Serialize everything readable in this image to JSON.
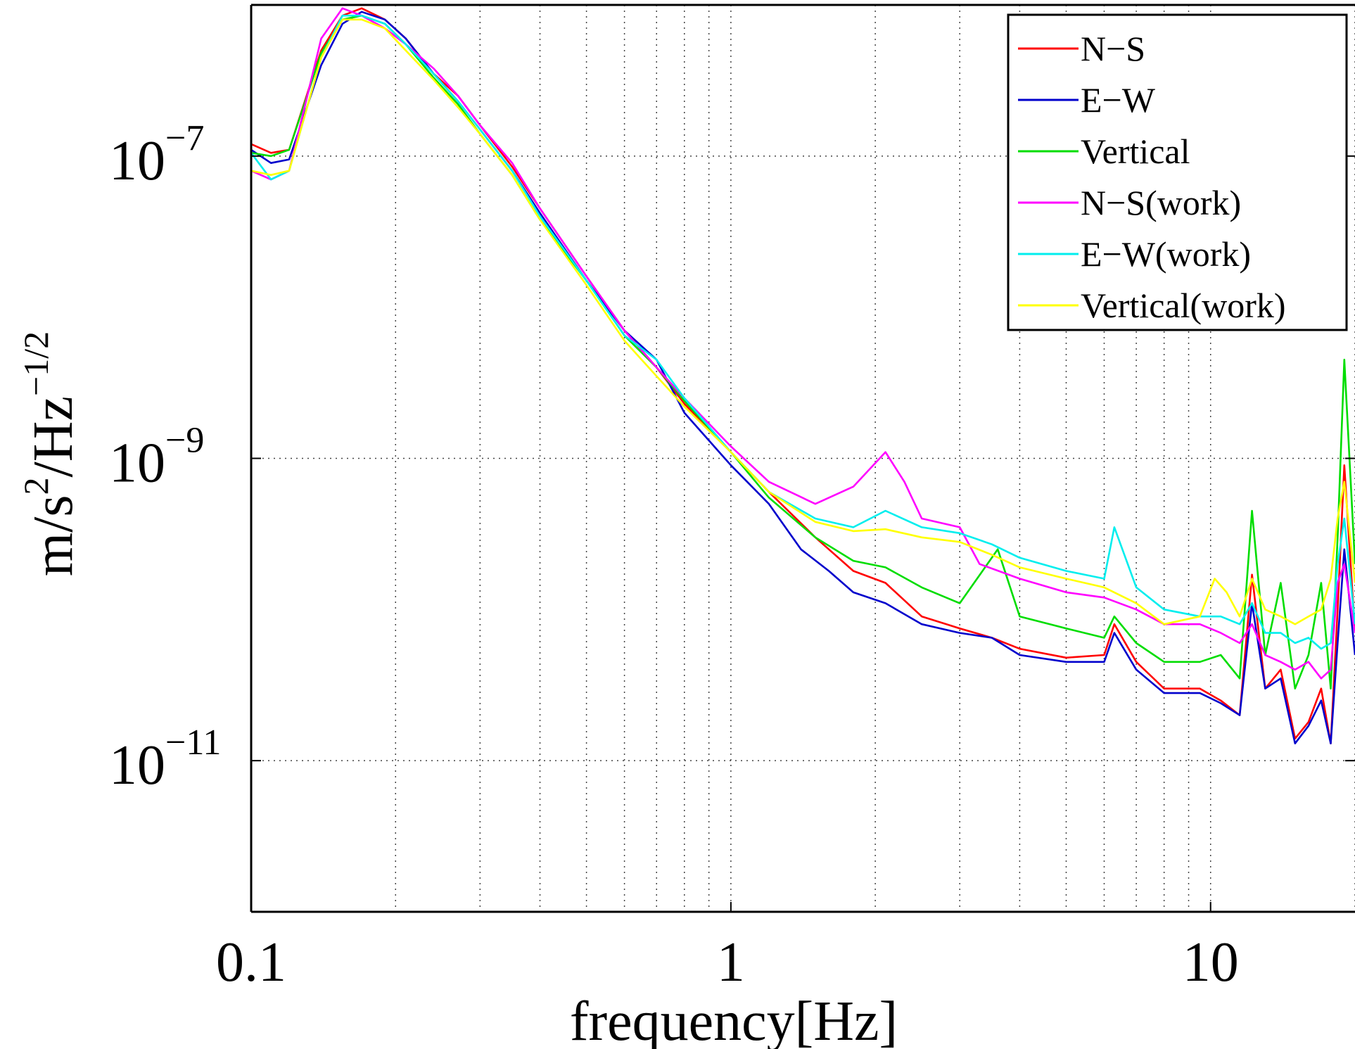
{
  "chart_data": {
    "type": "line",
    "title": "",
    "xlabel": "frequency[Hz]",
    "ylabel": "m/s²/Hz^−1/2",
    "ylabel_parts": {
      "base": "m/s",
      "exp1": "2",
      "mid": "/Hz",
      "exp2": "−1/2"
    },
    "x_scale": "log",
    "y_scale": "log",
    "xlim": [
      0.1,
      20
    ],
    "ylim": [
      1e-12,
      1e-06
    ],
    "x_ticks": [
      {
        "value": 0.1,
        "label": "0.1"
      },
      {
        "value": 1,
        "label": "1"
      },
      {
        "value": 10,
        "label": "10"
      }
    ],
    "y_ticks": [
      {
        "value": 1e-07,
        "base": "10",
        "exp": "−7"
      },
      {
        "value": 1e-09,
        "base": "10",
        "exp": "−9"
      },
      {
        "value": 1e-11,
        "base": "10",
        "exp": "−11"
      }
    ],
    "grid": true,
    "legend_position": "top-right",
    "series": [
      {
        "name": "N−S",
        "color": "#ff0000",
        "x": [
          0.1,
          0.11,
          0.12,
          0.14,
          0.155,
          0.17,
          0.19,
          0.21,
          0.24,
          0.27,
          0.3,
          0.35,
          0.4,
          0.5,
          0.6,
          0.7,
          0.8,
          1.0,
          1.2,
          1.5,
          1.8,
          2.1,
          2.5,
          3.0,
          3.5,
          4.0,
          5.0,
          6.0,
          6.3,
          7.0,
          8.0,
          9.5,
          10.5,
          11.5,
          12.2,
          13.0,
          14.0,
          15.0,
          16.0,
          17.0,
          17.8,
          18.4,
          19.0,
          20.0
        ],
        "y": [
          1.2e-07,
          1.05e-07,
          1.1e-07,
          5e-07,
          8.5e-07,
          9.5e-07,
          8e-07,
          6e-07,
          3.5e-07,
          2.5e-07,
          1.6e-07,
          8.5e-08,
          4.5e-08,
          1.6e-08,
          7e-09,
          4e-09,
          2.3e-09,
          1.1e-09,
          6e-10,
          3e-10,
          1.8e-10,
          1.5e-10,
          9e-11,
          7.5e-11,
          6.5e-11,
          5.5e-11,
          4.8e-11,
          5e-11,
          8e-11,
          4.5e-11,
          3e-11,
          3e-11,
          2.5e-11,
          2e-11,
          1.7e-10,
          3e-11,
          4e-11,
          1.4e-11,
          1.8e-11,
          3e-11,
          1.3e-11,
          1e-10,
          9e-10,
          7e-11
        ]
      },
      {
        "name": "E−W",
        "color": "#0000cc",
        "x": [
          0.1,
          0.11,
          0.12,
          0.14,
          0.155,
          0.17,
          0.19,
          0.21,
          0.24,
          0.27,
          0.3,
          0.35,
          0.4,
          0.5,
          0.6,
          0.7,
          0.8,
          1.0,
          1.2,
          1.4,
          1.6,
          1.8,
          2.1,
          2.5,
          3.0,
          3.5,
          4.0,
          5.0,
          6.0,
          6.3,
          7.0,
          8.0,
          9.5,
          10.5,
          11.5,
          12.2,
          13.0,
          14.0,
          15.0,
          16.0,
          17.0,
          17.8,
          18.4,
          19.0,
          20.0
        ],
        "y": [
          1.1e-07,
          9e-08,
          9.5e-08,
          4e-07,
          7.5e-07,
          9e-07,
          8e-07,
          6e-07,
          3.5e-07,
          2.3e-07,
          1.5e-07,
          8e-08,
          4.2e-08,
          1.5e-08,
          7e-09,
          4.5e-09,
          2e-09,
          9e-10,
          5e-10,
          2.5e-10,
          1.8e-10,
          1.3e-10,
          1.1e-10,
          8e-11,
          7e-11,
          6.5e-11,
          5e-11,
          4.5e-11,
          4.5e-11,
          7e-11,
          4e-11,
          2.8e-11,
          2.8e-11,
          2.4e-11,
          2e-11,
          1.1e-10,
          3e-11,
          3.5e-11,
          1.3e-11,
          1.7e-11,
          2.5e-11,
          1.3e-11,
          6e-11,
          2.5e-10,
          5e-11
        ]
      },
      {
        "name": "Vertical",
        "color": "#00dd00",
        "x": [
          0.1,
          0.11,
          0.12,
          0.14,
          0.155,
          0.17,
          0.19,
          0.21,
          0.24,
          0.27,
          0.3,
          0.35,
          0.4,
          0.5,
          0.6,
          0.7,
          0.8,
          1.0,
          1.2,
          1.5,
          1.8,
          2.1,
          2.5,
          3.0,
          3.6,
          4.0,
          5.0,
          6.0,
          6.3,
          7.0,
          8.0,
          9.5,
          10.5,
          11.5,
          12.2,
          13.0,
          14.0,
          15.0,
          16.0,
          17.0,
          17.8,
          18.4,
          19.0,
          20.0
        ],
        "y": [
          1.05e-07,
          1e-07,
          1.1e-07,
          4.8e-07,
          8e-07,
          8.5e-07,
          7.5e-07,
          5.5e-07,
          3.3e-07,
          2.2e-07,
          1.4e-07,
          7.5e-08,
          3.8e-08,
          1.5e-08,
          6.5e-09,
          4e-09,
          2.4e-09,
          1.1e-09,
          5.5e-10,
          3e-10,
          2.1e-10,
          1.9e-10,
          1.4e-10,
          1.1e-10,
          2.5e-10,
          9e-11,
          7.5e-11,
          6.5e-11,
          9e-11,
          6e-11,
          4.5e-11,
          4.5e-11,
          5e-11,
          3.5e-11,
          4.5e-10,
          5e-11,
          1.5e-10,
          3e-11,
          5e-11,
          1.5e-10,
          3e-11,
          3e-10,
          4.5e-09,
          2e-10
        ]
      },
      {
        "name": "N−S(work)",
        "color": "#ff00ff",
        "x": [
          0.1,
          0.11,
          0.12,
          0.14,
          0.155,
          0.17,
          0.19,
          0.21,
          0.24,
          0.27,
          0.3,
          0.35,
          0.4,
          0.5,
          0.6,
          0.7,
          0.8,
          1.0,
          1.2,
          1.5,
          1.8,
          2.1,
          2.3,
          2.5,
          3.0,
          3.3,
          4.0,
          5.0,
          6.0,
          7.0,
          8.0,
          9.5,
          10.5,
          11.5,
          12.2,
          13.0,
          14.0,
          15.0,
          16.0,
          17.0,
          17.8,
          18.4,
          19.0,
          20.0
        ],
        "y": [
          8e-08,
          7e-08,
          8e-08,
          6e-07,
          9.5e-07,
          8.5e-07,
          7e-07,
          5.5e-07,
          3.8e-07,
          2.5e-07,
          1.6e-07,
          9e-08,
          4.5e-08,
          1.6e-08,
          7e-09,
          4e-09,
          2.5e-09,
          1.2e-09,
          7e-10,
          5e-10,
          6.5e-10,
          1.1e-09,
          7e-10,
          4e-10,
          3.5e-10,
          2e-10,
          1.6e-10,
          1.3e-10,
          1.2e-10,
          1e-10,
          8e-11,
          8e-11,
          7e-11,
          6e-11,
          8e-11,
          5e-11,
          4.5e-11,
          4e-11,
          4.5e-11,
          3.5e-11,
          4e-11,
          1.5e-10,
          2e-10,
          7e-11
        ]
      },
      {
        "name": "E−W(work)",
        "color": "#00eeee",
        "x": [
          0.1,
          0.11,
          0.12,
          0.14,
          0.155,
          0.17,
          0.19,
          0.21,
          0.24,
          0.27,
          0.3,
          0.35,
          0.4,
          0.5,
          0.6,
          0.7,
          0.8,
          1.0,
          1.2,
          1.5,
          1.8,
          2.1,
          2.5,
          3.0,
          3.5,
          4.0,
          5.0,
          6.0,
          6.3,
          7.0,
          8.0,
          9.5,
          10.5,
          11.5,
          12.2,
          13.0,
          14.0,
          15.0,
          16.0,
          17.0,
          17.8,
          18.4,
          19.0,
          20.0
        ],
        "y": [
          1.05e-07,
          7e-08,
          8e-08,
          4.5e-07,
          8.5e-07,
          8.5e-07,
          7.5e-07,
          5.5e-07,
          3.5e-07,
          2.3e-07,
          1.5e-07,
          8e-08,
          4e-08,
          1.5e-08,
          6.5e-09,
          4.5e-09,
          2.5e-09,
          1.1e-09,
          6e-10,
          4e-10,
          3.5e-10,
          4.5e-10,
          3.5e-10,
          3.2e-10,
          2.7e-10,
          2.2e-10,
          1.8e-10,
          1.6e-10,
          3.5e-10,
          1.4e-10,
          1e-10,
          9e-11,
          9e-11,
          8e-11,
          1.1e-10,
          7e-11,
          7e-11,
          6e-11,
          6.5e-11,
          5.5e-11,
          6e-11,
          2e-10,
          4e-10,
          8e-11
        ]
      },
      {
        "name": "Vertical(work)",
        "color": "#ffff00",
        "x": [
          0.1,
          0.11,
          0.12,
          0.14,
          0.155,
          0.17,
          0.19,
          0.21,
          0.24,
          0.27,
          0.3,
          0.35,
          0.4,
          0.5,
          0.6,
          0.7,
          0.8,
          1.0,
          1.2,
          1.5,
          1.8,
          2.1,
          2.5,
          3.0,
          3.5,
          4.0,
          5.0,
          6.0,
          7.0,
          8.0,
          9.5,
          10.2,
          10.8,
          11.5,
          12.2,
          13.0,
          14.0,
          15.0,
          16.0,
          17.0,
          17.8,
          18.4,
          19.0,
          20.0
        ],
        "y": [
          8e-08,
          7.5e-08,
          8e-08,
          4.5e-07,
          8e-07,
          8e-07,
          7e-07,
          5e-07,
          3.2e-07,
          2.1e-07,
          1.4e-07,
          7.5e-08,
          3.8e-08,
          1.4e-08,
          6e-09,
          3.5e-09,
          2.2e-09,
          1.1e-09,
          6e-10,
          3.8e-10,
          3.3e-10,
          3.4e-10,
          3e-10,
          2.8e-10,
          2.3e-10,
          1.9e-10,
          1.6e-10,
          1.4e-10,
          1.1e-10,
          8e-11,
          9e-11,
          1.6e-10,
          1.3e-10,
          9e-11,
          1.6e-10,
          1e-10,
          9e-11,
          8e-11,
          9e-11,
          1e-10,
          1.6e-10,
          4e-10,
          7e-10,
          1.5e-10
        ]
      }
    ]
  }
}
